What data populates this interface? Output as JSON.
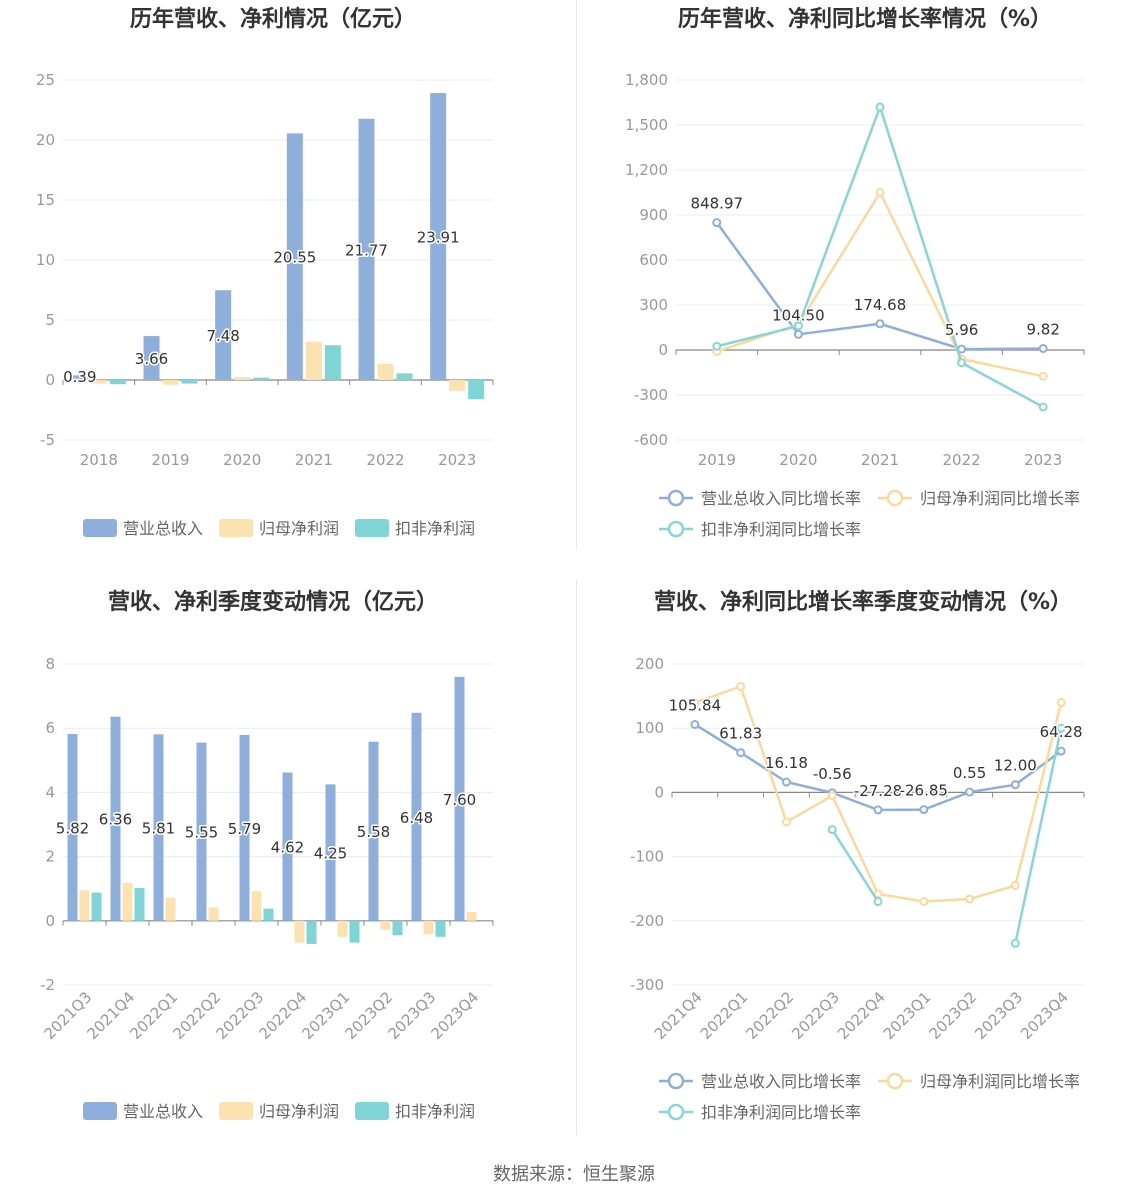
{
  "source_text": "数据来源：恒生聚源",
  "colors": {
    "revenue": "#8eaedb",
    "parent_profit": "#fde2b1",
    "deducted_profit": "#7fd4d6",
    "revenue_line": "#8eaedb",
    "parent_line": "#fdd89a",
    "deducted_line": "#86d6d8",
    "grid": "#e8ebf2",
    "axis_text": "#999999",
    "title": "#333333",
    "legend_text": "#666666"
  },
  "chart_data": [
    {
      "type": "bar",
      "title": "历年营收、净利情况（亿元）",
      "categories": [
        "2018",
        "2019",
        "2020",
        "2021",
        "2022",
        "2023"
      ],
      "ylim": [
        -5,
        25
      ],
      "yticks": [
        -5,
        0,
        5,
        10,
        15,
        20,
        25
      ],
      "grid": true,
      "legend_position": "bottom",
      "series": [
        {
          "name": "营业总收入",
          "values": [
            0.39,
            3.66,
            7.48,
            20.55,
            21.77,
            23.91
          ],
          "labels": [
            "0.39",
            "3.66",
            "7.48",
            "20.55",
            "21.77",
            "23.91"
          ]
        },
        {
          "name": "归母净利润",
          "values": [
            -0.3,
            -0.4,
            0.25,
            3.2,
            1.35,
            -0.9
          ]
        },
        {
          "name": "扣非净利润",
          "values": [
            -0.35,
            -0.3,
            0.2,
            2.9,
            0.55,
            -1.6
          ]
        }
      ]
    },
    {
      "type": "line",
      "title": "历年营收、净利同比增长率情况（%）",
      "categories": [
        "2019",
        "2020",
        "2021",
        "2022",
        "2023"
      ],
      "ylim": [
        -600,
        1800
      ],
      "yticks": [
        -600,
        -300,
        0,
        300,
        600,
        900,
        1200,
        1500,
        1800
      ],
      "ytick_labels": [
        "-600",
        "-300",
        "0",
        "300",
        "600",
        "900",
        "1,200",
        "1,500",
        "1,800"
      ],
      "grid": true,
      "legend_position": "bottom",
      "series": [
        {
          "name": "营业总收入同比增长率",
          "values": [
            848.97,
            104.5,
            174.68,
            5.96,
            9.82
          ],
          "labels": [
            "848.97",
            "104.50",
            "174.68",
            "5.96",
            "9.82"
          ]
        },
        {
          "name": "归母净利润同比增长率",
          "values": [
            -10,
            170,
            1050,
            -60,
            -175
          ]
        },
        {
          "name": "扣非净利润同比增长率",
          "values": [
            25,
            160,
            1620,
            -85,
            -380
          ]
        }
      ]
    },
    {
      "type": "bar",
      "title": "营收、净利季度变动情况（亿元）",
      "categories": [
        "2021Q3",
        "2021Q4",
        "2022Q1",
        "2022Q2",
        "2022Q3",
        "2022Q4",
        "2023Q1",
        "2023Q2",
        "2023Q3",
        "2023Q4"
      ],
      "ylim": [
        -2,
        8
      ],
      "yticks": [
        -2,
        0,
        2,
        4,
        6,
        8
      ],
      "grid": true,
      "legend_position": "bottom",
      "series": [
        {
          "name": "营业总收入",
          "values": [
            5.82,
            6.36,
            5.81,
            5.55,
            5.79,
            4.62,
            4.25,
            5.58,
            6.48,
            7.6
          ],
          "labels": [
            "5.82",
            "6.36",
            "5.81",
            "5.55",
            "5.79",
            "4.62",
            "4.25",
            "5.58",
            "6.48",
            "7.60"
          ]
        },
        {
          "name": "归母净利润",
          "values": [
            0.95,
            1.18,
            0.72,
            0.42,
            0.92,
            -0.68,
            -0.5,
            -0.28,
            -0.42,
            0.28
          ]
        },
        {
          "name": "扣非净利润",
          "values": [
            0.88,
            1.02,
            null,
            null,
            0.38,
            -0.72,
            -0.68,
            -0.45,
            -0.5,
            null
          ]
        }
      ]
    },
    {
      "type": "line",
      "title": "营收、净利同比增长率季度变动情况（%）",
      "categories": [
        "2021Q4",
        "2022Q1",
        "2022Q2",
        "2022Q3",
        "2022Q4",
        "2023Q1",
        "2023Q2",
        "2023Q3",
        "2023Q4"
      ],
      "ylim": [
        -300,
        200
      ],
      "yticks": [
        -300,
        -200,
        -100,
        0,
        100,
        200
      ],
      "grid": true,
      "legend_position": "bottom",
      "series": [
        {
          "name": "营业总收入同比增长率",
          "values": [
            105.84,
            61.83,
            16.18,
            -0.56,
            -27.28,
            -26.85,
            0.55,
            12.0,
            64.28
          ],
          "labels": [
            "105.84",
            "61.83",
            "16.18",
            "-0.56",
            "-27.28",
            "-26.85",
            "0.55",
            "12.00",
            "64.28"
          ]
        },
        {
          "name": "归母净利润同比增长率",
          "values": [
            140,
            165,
            -46,
            -5,
            -158,
            -170,
            -166,
            -145,
            140
          ]
        },
        {
          "name": "扣非净利润同比增长率",
          "values": [
            null,
            null,
            null,
            -58,
            -170,
            null,
            null,
            -235,
            100
          ]
        }
      ]
    }
  ]
}
